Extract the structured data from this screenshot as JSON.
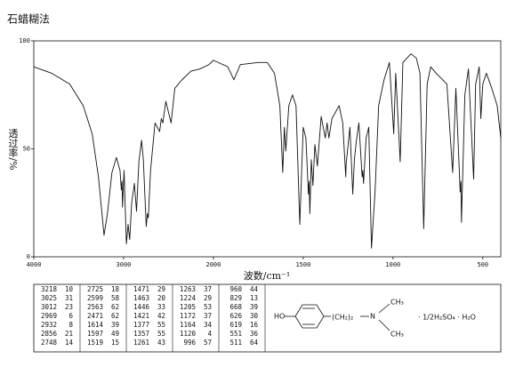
{
  "chart_data": {
    "type": "line",
    "title": "石蜡糊法",
    "y_label": "透过率/%",
    "x_label": "波数/cm⁻¹",
    "xlim": [
      4000,
      400
    ],
    "xticks": [
      4000,
      3000,
      2000,
      1500,
      1000,
      500
    ],
    "ylim": [
      0,
      100
    ],
    "yticks": [
      0,
      50,
      100
    ],
    "color": "#111111",
    "x": [
      4000,
      3800,
      3600,
      3450,
      3350,
      3280,
      3218,
      3180,
      3130,
      3080,
      3060,
      3040,
      3025,
      3018,
      3012,
      2995,
      2969,
      2950,
      2932,
      2910,
      2880,
      2856,
      2830,
      2800,
      2780,
      2748,
      2735,
      2725,
      2700,
      2650,
      2599,
      2580,
      2563,
      2530,
      2471,
      2430,
      2350,
      2250,
      2150,
      2050,
      2000,
      1920,
      1886,
      1850,
      1750,
      1700,
      1660,
      1630,
      1614,
      1605,
      1597,
      1580,
      1560,
      1540,
      1519,
      1500,
      1485,
      1471,
      1467,
      1463,
      1455,
      1446,
      1435,
      1421,
      1400,
      1377,
      1367,
      1357,
      1340,
      1300,
      1280,
      1263,
      1261,
      1240,
      1224,
      1215,
      1205,
      1190,
      1172,
      1168,
      1164,
      1150,
      1135,
      1120,
      1100,
      1080,
      1050,
      1020,
      996,
      985,
      960,
      945,
      900,
      870,
      850,
      829,
      810,
      790,
      760,
      700,
      668,
      650,
      626,
      622,
      619,
      600,
      580,
      551,
      540,
      520,
      511,
      500,
      480,
      450,
      420,
      400
    ],
    "values": [
      88,
      85,
      80,
      70,
      57,
      37,
      10,
      20,
      39,
      46,
      43,
      40,
      31,
      35,
      23,
      40,
      6,
      15,
      8,
      25,
      34,
      21,
      44,
      54,
      45,
      14,
      20,
      18,
      40,
      62,
      58,
      64,
      62,
      72,
      62,
      78,
      82,
      86,
      87,
      89,
      91,
      88,
      82,
      89,
      90,
      90,
      85,
      70,
      39,
      60,
      49,
      70,
      75,
      70,
      15,
      60,
      55,
      29,
      35,
      20,
      45,
      33,
      52,
      42,
      65,
      55,
      62,
      55,
      64,
      70,
      62,
      37,
      43,
      60,
      29,
      45,
      53,
      62,
      37,
      40,
      34,
      55,
      60,
      4,
      30,
      70,
      82,
      90,
      57,
      85,
      44,
      90,
      94,
      92,
      85,
      13,
      80,
      88,
      85,
      80,
      39,
      78,
      30,
      35,
      16,
      75,
      87,
      36,
      80,
      88,
      64,
      80,
      85,
      78,
      70,
      55
    ]
  },
  "peak_table": {
    "columns": [
      [
        [
          3218,
          10
        ],
        [
          3025,
          31
        ],
        [
          3012,
          23
        ],
        [
          2969,
          6
        ],
        [
          2932,
          8
        ],
        [
          2856,
          21
        ],
        [
          2748,
          14
        ]
      ],
      [
        [
          2725,
          18
        ],
        [
          2599,
          58
        ],
        [
          2563,
          62
        ],
        [
          2471,
          62
        ],
        [
          1614,
          39
        ],
        [
          1597,
          49
        ],
        [
          1519,
          15
        ]
      ],
      [
        [
          1471,
          29
        ],
        [
          1463,
          20
        ],
        [
          1446,
          33
        ],
        [
          1421,
          42
        ],
        [
          1377,
          55
        ],
        [
          1357,
          55
        ],
        [
          1261,
          43
        ]
      ],
      [
        [
          1263,
          37
        ],
        [
          1224,
          29
        ],
        [
          1205,
          53
        ],
        [
          1172,
          37
        ],
        [
          1164,
          34
        ],
        [
          1120,
          4
        ],
        [
          996,
          57
        ]
      ],
      [
        [
          960,
          44
        ],
        [
          829,
          13
        ],
        [
          668,
          39
        ],
        [
          626,
          30
        ],
        [
          619,
          16
        ],
        [
          551,
          36
        ],
        [
          511,
          64
        ]
      ]
    ]
  },
  "structure": {
    "hydroxyl": "HO",
    "chain": "(CH₂)₂",
    "nitrogen": "N",
    "methyl_top": "CH₃",
    "methyl_bottom": "CH₃",
    "salt": "· 1/2H₂SO₄ · H₂O"
  }
}
